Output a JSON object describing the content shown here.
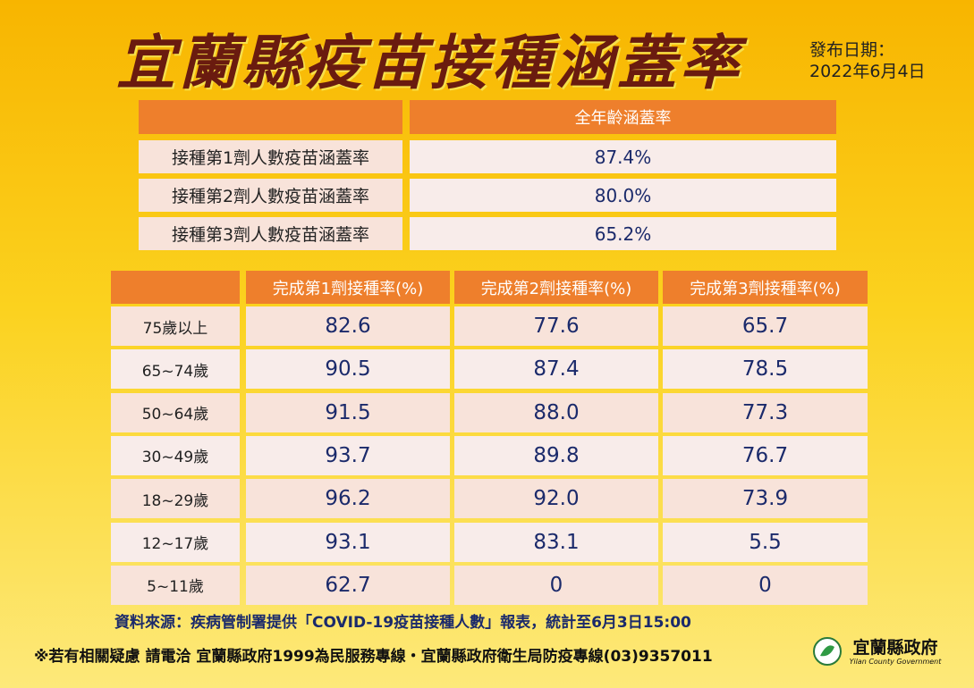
{
  "header": {
    "title": "宜蘭縣疫苗接種涵蓋率",
    "date_label": "發布日期：",
    "date": "2022年6月4日"
  },
  "summary_table": {
    "columns": [
      "全年齡涵蓋率"
    ],
    "rows": [
      {
        "label": "接種第1劑人數疫苗涵蓋率",
        "value": "87.4%"
      },
      {
        "label": "接種第2劑人數疫苗涵蓋率",
        "value": "80.0%"
      },
      {
        "label": "接種第3劑人數疫苗涵蓋率",
        "value": "65.2%"
      }
    ]
  },
  "age_table": {
    "columns": [
      "完成第1劑接種率(%)",
      "完成第2劑接種率(%)",
      "完成第3劑接種率(%)"
    ],
    "rows": [
      {
        "label": "75歲以上",
        "values": [
          "82.6",
          "77.6",
          "65.7"
        ]
      },
      {
        "label": "65~74歲",
        "values": [
          "90.5",
          "87.4",
          "78.5"
        ]
      },
      {
        "label": "50~64歲",
        "values": [
          "91.5",
          "88.0",
          "77.3"
        ]
      },
      {
        "label": "30~49歲",
        "values": [
          "93.7",
          "89.8",
          "76.7"
        ]
      },
      {
        "label": "18~29歲",
        "values": [
          "96.2",
          "92.0",
          "73.9"
        ]
      },
      {
        "label": "12~17歲",
        "values": [
          "93.1",
          "83.1",
          "5.5"
        ]
      },
      {
        "label": "5~11歲",
        "values": [
          "62.7",
          "0",
          "0"
        ]
      }
    ]
  },
  "footer": {
    "source": "資料來源：疾病管制署提供「COVID-19疫苗接種人數」報表，統計至6月3日15:00",
    "contact": "※若有相關疑慮 請電洽  宜蘭縣政府1999為民服務專線・宜蘭縣政府衛生局防疫專線(03)9357011",
    "logo_name": "宜蘭縣政府",
    "logo_sub": "Yilan County Government"
  }
}
